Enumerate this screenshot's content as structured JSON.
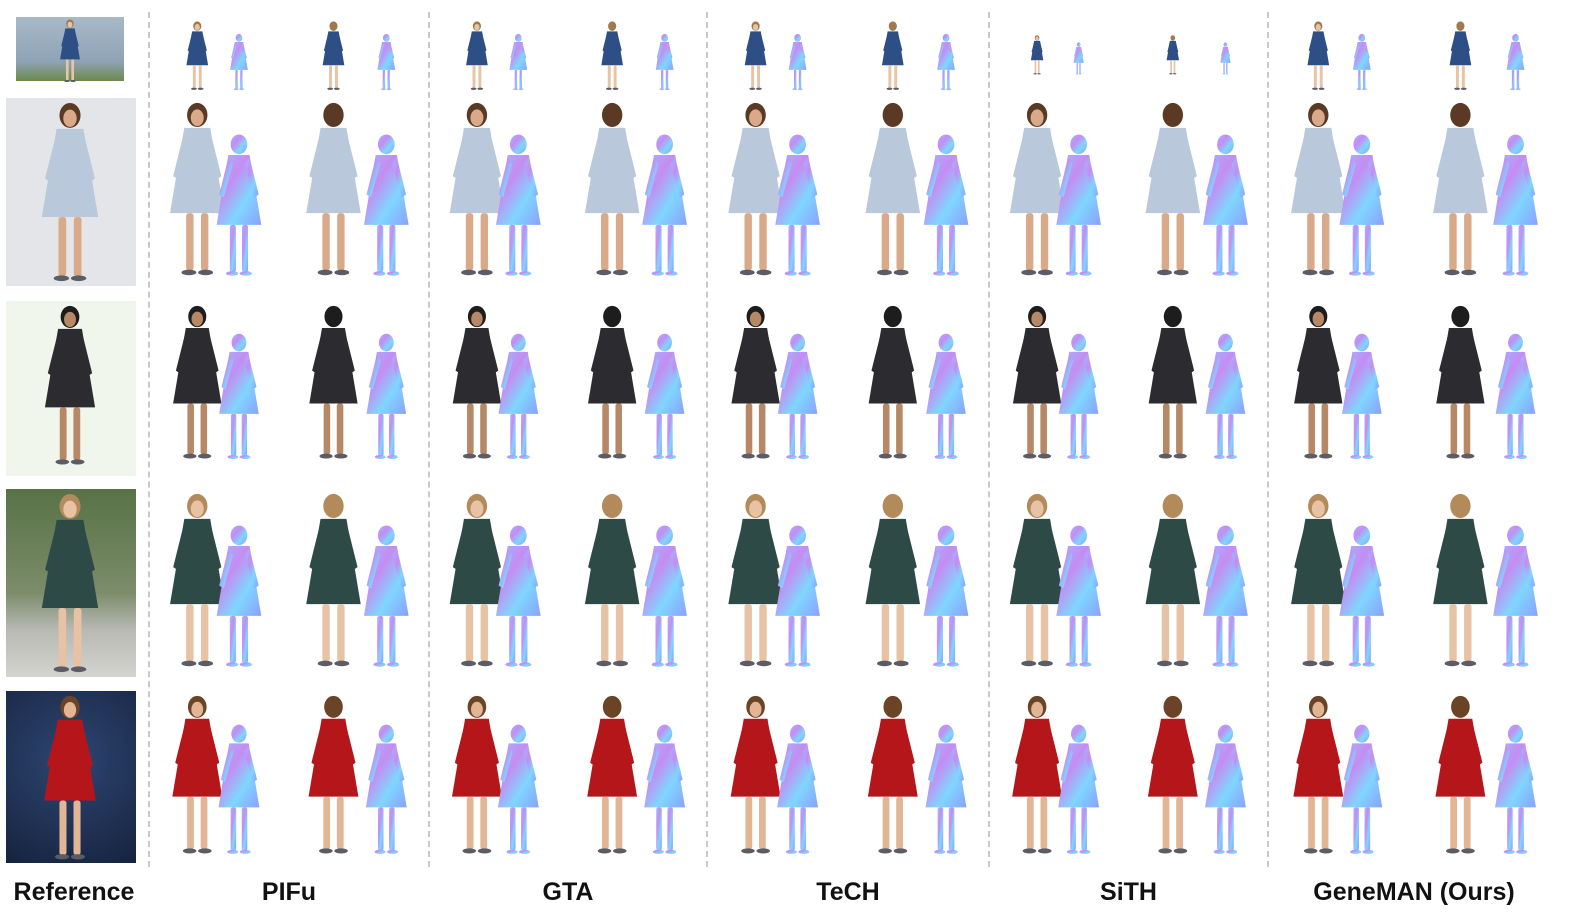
{
  "columns": [
    {
      "key": "reference",
      "label": "Reference"
    },
    {
      "key": "pifu",
      "label": "PIFu"
    },
    {
      "key": "gta",
      "label": "GTA"
    },
    {
      "key": "tech",
      "label": "TeCH"
    },
    {
      "key": "sith",
      "label": "SiTH"
    },
    {
      "key": "geneman",
      "label": "GeneMAN (Ours)"
    }
  ],
  "rows": [
    {
      "subject": "boy-waving",
      "bg": "#8fa6b8",
      "cloth": "#2d4f86",
      "skin": "#e8c4a6",
      "hair": "#a07a4c"
    },
    {
      "subject": "woman-shirt-dress",
      "bg": "#e7e9ec",
      "cloth": "#b9c8db",
      "skin": "#d8aa8a",
      "hair": "#5a3a25"
    },
    {
      "subject": "basketball-player",
      "bg": "#f1f6ec",
      "cloth": "#2b2b30",
      "skin": "#b78866",
      "hair": "#1d1d1d"
    },
    {
      "subject": "girl-plaid-dress",
      "bg": "#7b8c6a",
      "cloth": "#2e4a47",
      "skin": "#e7c2a4",
      "hair": "#b38a5a"
    },
    {
      "subject": "woman-red-dress",
      "bg": "#1e2f55",
      "cloth": "#b4161a",
      "skin": "#e2b694",
      "hair": "#6b4428"
    }
  ]
}
